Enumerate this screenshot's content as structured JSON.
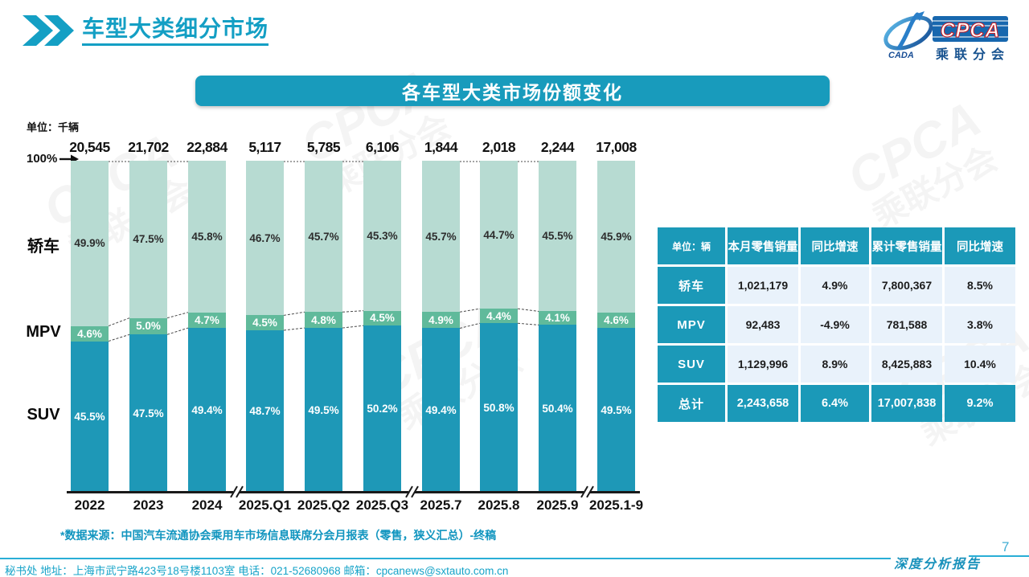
{
  "header": {
    "title": "车型大类细分市场"
  },
  "logo": {
    "cpca": "CPCA",
    "sub": "乘联分会",
    "cada": "CADA"
  },
  "banner": {
    "title": "各车型大类市场份额变化"
  },
  "chart_data": {
    "type": "bar",
    "stacked": true,
    "unit_label": "单位：千辆",
    "y_top_label": "100%",
    "ylim": [
      0,
      100
    ],
    "categories": [
      "2022",
      "2023",
      "2024",
      "2025.Q1",
      "2025.Q2",
      "2025.Q3",
      "2025.7",
      "2025.8",
      "2025.9",
      "2025.1-9"
    ],
    "totals": [
      "20,545",
      "21,702",
      "22,884",
      "5,117",
      "5,785",
      "6,106",
      "1,844",
      "2,018",
      "2,244",
      "17,008"
    ],
    "series": [
      {
        "name": "轿车",
        "color": "#b7dbd2",
        "values": [
          49.9,
          47.5,
          45.8,
          46.7,
          45.7,
          45.3,
          45.7,
          44.7,
          45.5,
          45.9
        ]
      },
      {
        "name": "MPV",
        "color": "#60ba9b",
        "values": [
          4.6,
          5.0,
          4.7,
          4.5,
          4.8,
          4.5,
          4.9,
          4.4,
          4.1,
          4.6
        ]
      },
      {
        "name": "SUV",
        "color": "#1e98b7",
        "values": [
          45.5,
          47.5,
          49.4,
          48.7,
          49.5,
          50.2,
          49.4,
          50.8,
          50.4,
          49.5
        ]
      }
    ],
    "groups": [
      [
        0,
        1,
        2
      ],
      [
        3,
        4,
        5
      ],
      [
        6,
        7,
        8
      ],
      [
        9
      ]
    ]
  },
  "table": {
    "headers": [
      "单位：辆",
      "本月零售销量",
      "同比增速",
      "累计零售销量",
      "同比增速"
    ],
    "rows": [
      {
        "label": "轿车",
        "values": [
          "1,021,179",
          "4.9%",
          "7,800,367",
          "8.5%"
        ],
        "total": false
      },
      {
        "label": "MPV",
        "values": [
          "92,483",
          "-4.9%",
          "781,588",
          "3.8%"
        ],
        "total": false
      },
      {
        "label": "SUV",
        "values": [
          "1,129,996",
          "8.9%",
          "8,425,883",
          "10.4%"
        ],
        "total": false
      },
      {
        "label": "总计",
        "values": [
          "2,243,658",
          "6.4%",
          "17,007,838",
          "9.2%"
        ],
        "total": true
      }
    ]
  },
  "footer": {
    "source": "*数据来源：中国汽车流通协会乘用车市场信息联席分会月报表（零售，狭义汇总）-终稿",
    "contact": "秘书处  地址：上海市武宁路423号18号楼1103室  电话：021-52680968  邮箱：cpcanews@sxtauto.com.cn",
    "report_label": "深度分析报告",
    "page": "7"
  },
  "watermark": {
    "line1": "CPCA",
    "line2": "乘联分会"
  },
  "colors": {
    "accent": "#149fc4",
    "banner": "#189bbc",
    "table_header": "#1b99b8",
    "table_cell": "#e9f2fb",
    "sedan": "#b7dbd2",
    "mpv": "#60ba9b",
    "suv": "#1e98b7"
  }
}
